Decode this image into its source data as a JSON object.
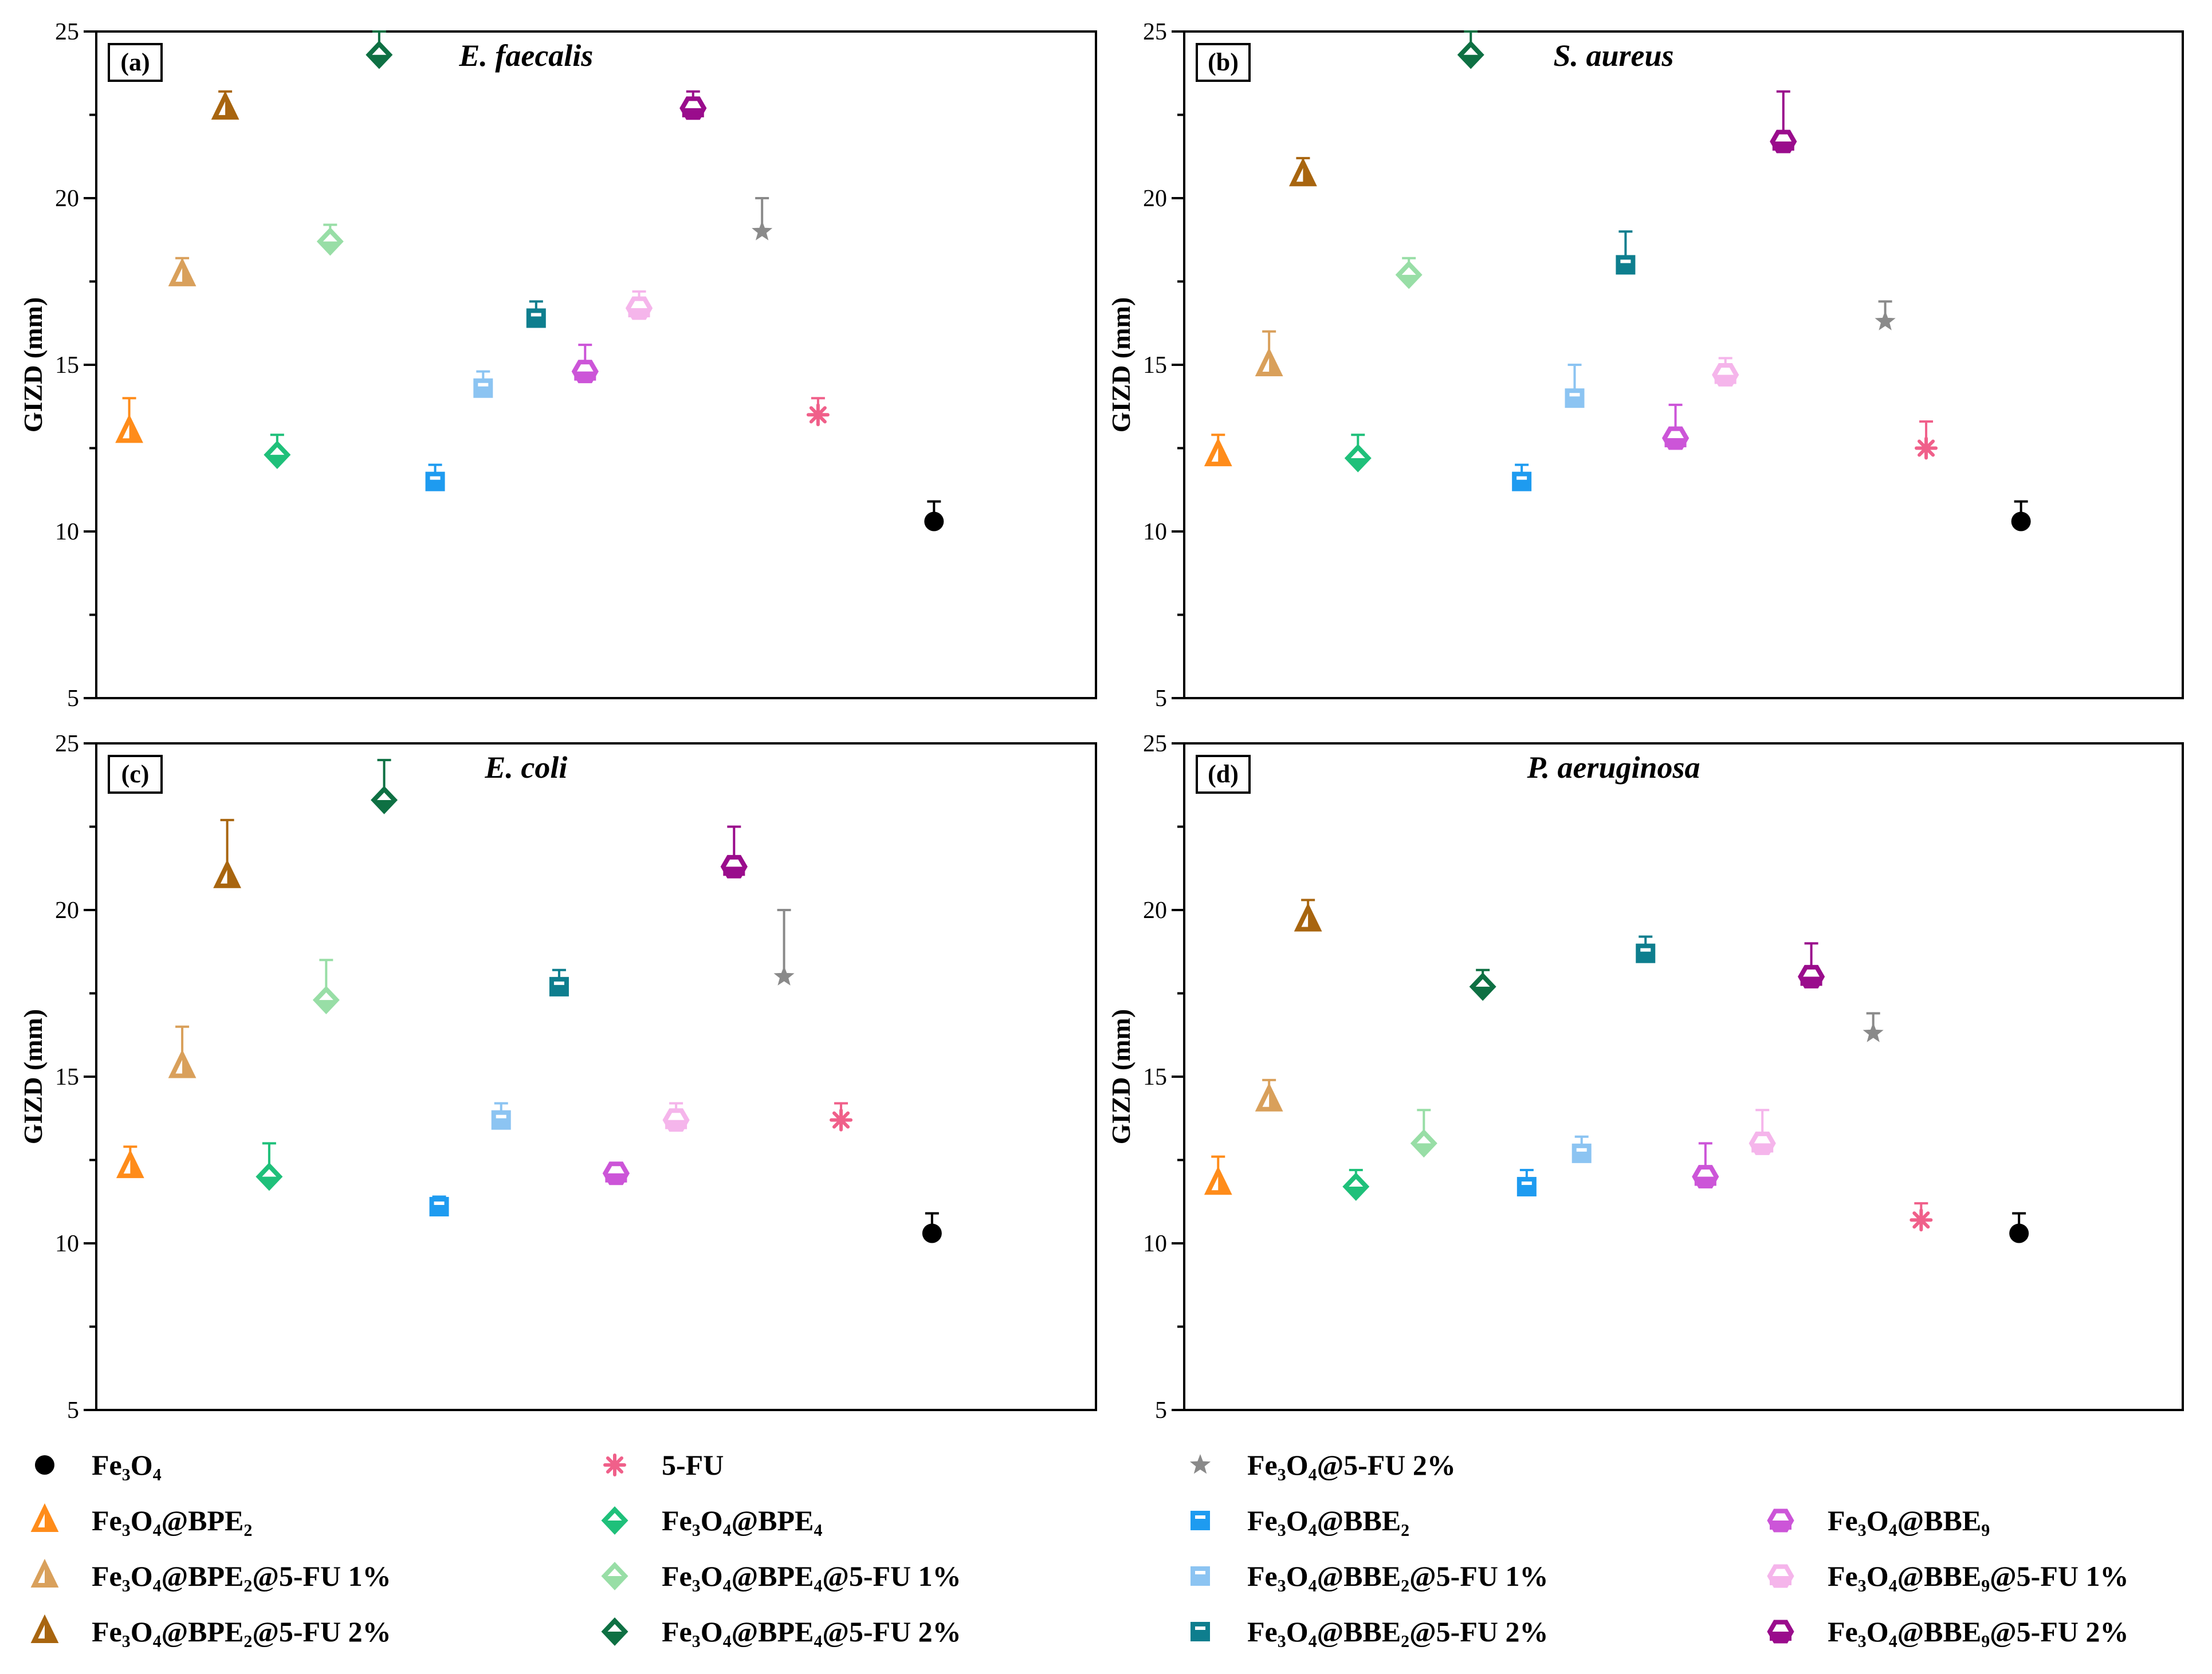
{
  "figure": {
    "ylabel": "GIZD (mm)",
    "series": [
      {
        "key": "Fe3O4",
        "label": "Fe₃O₄",
        "color": "#000000",
        "marker": "circle"
      },
      {
        "key": "BPE2",
        "label": "Fe₃O₄@BPE₂",
        "color": "#FF8C1A",
        "marker": "triangle"
      },
      {
        "key": "BPE2_1",
        "label": "Fe₃O₄@BPE₂@5-FU 1%",
        "color": "#D9A05B",
        "marker": "triangle"
      },
      {
        "key": "BPE2_2",
        "label": "Fe₃O₄@BPE₂@5-FU 2%",
        "color": "#A8650F",
        "marker": "triangle"
      },
      {
        "key": "FU",
        "label": "5-FU",
        "color": "#F0608A",
        "marker": "asterisk"
      },
      {
        "key": "BPE4",
        "label": "Fe₃O₄@BPE₄",
        "color": "#1FC07A",
        "marker": "diamond"
      },
      {
        "key": "BPE4_1",
        "label": "Fe₃O₄@BPE₄@5-FU 1%",
        "color": "#98DEA6",
        "marker": "diamond"
      },
      {
        "key": "BPE4_2",
        "label": "Fe₃O₄@BPE₄@5-FU 2%",
        "color": "#0E7043",
        "marker": "diamond"
      },
      {
        "key": "FeFU2",
        "label": "Fe₃O₄@5-FU 2%",
        "color": "#8A8A8A",
        "marker": "star"
      },
      {
        "key": "BBE2",
        "label": "Fe₃O₄@BBE₂",
        "color": "#1E9BF0",
        "marker": "square"
      },
      {
        "key": "BBE2_1",
        "label": "Fe₃O₄@BBE₂@5-FU 1%",
        "color": "#8CC4F2",
        "marker": "square"
      },
      {
        "key": "BBE2_2",
        "label": "Fe₃O₄@BBE₂@5-FU 2%",
        "color": "#0E7E8E",
        "marker": "square"
      },
      {
        "key": "BBE9",
        "label": "Fe₃O₄@BBE₉",
        "color": "#CC55D8",
        "marker": "hexagon"
      },
      {
        "key": "BBE9_1",
        "label": "Fe₃O₄@BBE₉@5-FU 1%",
        "color": "#F5B5EB",
        "marker": "hexagon"
      },
      {
        "key": "BBE9_2",
        "label": "Fe₃O₄@BBE₉@5-FU 2%",
        "color": "#9A0C8C",
        "marker": "hexagon"
      }
    ],
    "legend_columns": [
      [
        "Fe3O4",
        "BPE2",
        "BPE2_1",
        "BPE2_2"
      ],
      [
        "FU",
        "BPE4",
        "BPE4_1",
        "BPE4_2"
      ],
      [
        "FeFU2",
        "BBE2",
        "BBE2_1",
        "BBE2_2"
      ],
      [
        "BBE9",
        "BBE9_1",
        "BBE9_2"
      ]
    ]
  },
  "chart_data": [
    {
      "type": "scatter",
      "panel": "(a)",
      "title": "E. faecalis",
      "ylabel": "GIZD (mm)",
      "ylim": [
        5,
        25
      ],
      "yticks": [
        "5",
        "10",
        "15",
        "20",
        "25"
      ],
      "order": [
        "BPE2",
        "BPE2_1",
        "BPE2_2",
        "BPE4",
        "BPE4_1",
        "BPE4_2",
        "BBE2",
        "BBE2_1",
        "BBE2_2",
        "BBE9",
        "BBE9_1",
        "BBE9_2",
        "FeFU2",
        "FU",
        "Fe3O4"
      ],
      "values": [
        13.0,
        17.7,
        22.7,
        12.3,
        18.7,
        24.3,
        11.5,
        14.3,
        16.4,
        14.8,
        16.7,
        22.7,
        19.0,
        13.5,
        10.3
      ],
      "errors": [
        1.0,
        0.5,
        0.5,
        0.6,
        0.5,
        0.7,
        0.5,
        0.5,
        0.5,
        0.8,
        0.5,
        0.5,
        1.0,
        0.5,
        0.6
      ]
    },
    {
      "type": "scatter",
      "panel": "(b)",
      "title": "S. aureus",
      "ylabel": "GIZD (mm)",
      "ylim": [
        5,
        25
      ],
      "yticks": [
        "5",
        "10",
        "15",
        "20",
        "25"
      ],
      "order": [
        "BPE2",
        "BPE2_1",
        "BPE2_2",
        "BPE4",
        "BPE4_1",
        "BPE4_2",
        "BBE2",
        "BBE2_1",
        "BBE2_2",
        "BBE9",
        "BBE9_1",
        "BBE9_2",
        "FeFU2",
        "FU",
        "Fe3O4"
      ],
      "values": [
        12.3,
        15.0,
        20.7,
        12.2,
        17.7,
        24.3,
        11.5,
        14.0,
        18.0,
        12.8,
        14.7,
        21.7,
        16.3,
        12.5,
        10.3
      ],
      "errors": [
        0.6,
        1.0,
        0.5,
        0.7,
        0.5,
        0.7,
        0.5,
        1.0,
        1.0,
        1.0,
        0.5,
        1.5,
        0.6,
        0.8,
        0.6
      ]
    },
    {
      "type": "scatter",
      "panel": "(c)",
      "title": "E. coli",
      "ylabel": "GIZD (mm)",
      "ylim": [
        5,
        25
      ],
      "yticks": [
        "5",
        "10",
        "15",
        "20",
        "25"
      ],
      "order": [
        "BPE2",
        "BPE2_1",
        "BPE2_2",
        "BPE4",
        "BPE4_1",
        "BPE4_2",
        "BBE2",
        "BBE2_1",
        "BBE2_2",
        "BBE9",
        "BBE9_1",
        "BBE9_2",
        "FeFU2",
        "FU",
        "Fe3O4"
      ],
      "values": [
        12.3,
        15.3,
        21.0,
        12.0,
        17.3,
        23.3,
        11.1,
        13.7,
        17.7,
        12.1,
        13.7,
        21.3,
        18.0,
        13.7,
        10.3
      ],
      "errors": [
        0.6,
        1.2,
        1.7,
        1.0,
        1.2,
        1.2,
        0.3,
        0.5,
        0.5,
        0.2,
        0.5,
        1.2,
        2.0,
        0.5,
        0.6
      ]
    },
    {
      "type": "scatter",
      "panel": "(d)",
      "title": "P. aeruginosa",
      "ylabel": "GIZD (mm)",
      "ylim": [
        5,
        25
      ],
      "yticks": [
        "5",
        "10",
        "15",
        "20",
        "25"
      ],
      "order": [
        "BPE2",
        "BPE2_1",
        "BPE2_2",
        "BPE4",
        "BPE4_1",
        "BPE4_2",
        "BBE2",
        "BBE2_1",
        "BBE2_2",
        "BBE9",
        "BBE9_1",
        "BBE9_2",
        "FeFU2",
        "FU",
        "Fe3O4"
      ],
      "values": [
        11.8,
        14.3,
        19.7,
        11.7,
        13.0,
        17.7,
        11.7,
        12.7,
        18.7,
        12.0,
        13.0,
        18.0,
        16.3,
        10.7,
        10.3
      ],
      "errors": [
        0.8,
        0.6,
        0.6,
        0.5,
        1.0,
        0.5,
        0.5,
        0.5,
        0.5,
        1.0,
        1.0,
        1.0,
        0.6,
        0.5,
        0.6
      ]
    }
  ]
}
